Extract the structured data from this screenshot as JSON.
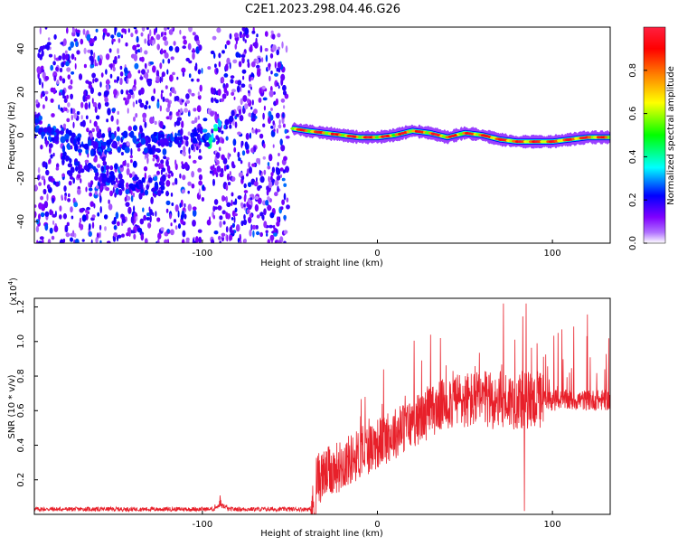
{
  "figure_title": "C2E1.2023.298.04.46.G26",
  "chart_data": [
    {
      "type": "heatmap",
      "title": "C2E1.2023.298.04.46.G26",
      "xlabel": "Height of straight line (km)",
      "ylabel": "Frequency (Hz)",
      "xlim": [
        -196,
        133
      ],
      "ylim": [
        -50,
        50
      ],
      "xticks": [
        -100,
        0,
        100
      ],
      "yticks": [
        -40,
        -20,
        0,
        20,
        40
      ],
      "colorbar": {
        "label": "Normalized spectral amplitude",
        "range": [
          0,
          1
        ],
        "ticks": [
          0.0,
          0.2,
          0.4,
          0.6,
          0.8
        ],
        "colormap": [
          "#ffffff",
          "#8000ff",
          "#0000ff",
          "#00ffff",
          "#00ff00",
          "#ffff00",
          "#ff8000",
          "#ff0000"
        ]
      },
      "noise_region_x": [
        -196,
        -51
      ],
      "signal_ridge": {
        "x": [
          -48,
          -40,
          -30,
          -20,
          -10,
          0,
          10,
          20,
          30,
          40,
          50,
          60,
          70,
          80,
          90,
          100,
          110,
          120,
          133
        ],
        "y": [
          3,
          2,
          1,
          0,
          -1,
          -1,
          0,
          2,
          1,
          -1,
          1,
          0,
          -2,
          -3,
          -3,
          -3,
          -2,
          -1,
          -1
        ]
      },
      "left_band": {
        "x": [
          -196,
          -180,
          -160,
          -140,
          -120,
          -100,
          -90
        ],
        "y": [
          6,
          -2,
          -4,
          -4,
          -3,
          -2,
          2
        ]
      },
      "lower_band": {
        "x": [
          -180,
          -160,
          -140,
          -120
        ],
        "y": [
          -12,
          -18,
          -22,
          -25
        ]
      }
    },
    {
      "type": "line",
      "xlabel": "Height of straight line (km)",
      "ylabel": "SNR (10 * v/v)",
      "y_multiplier_label": "(x10",
      "y_multiplier_exp": "4",
      "xlim": [
        -196,
        133
      ],
      "ylim": [
        0,
        1.25
      ],
      "xticks": [
        -100,
        0,
        100
      ],
      "yticks": [
        0.2,
        0.4,
        0.6,
        0.8,
        1.0,
        1.2
      ],
      "color": "#e8202a",
      "series": [
        {
          "x": [
            -196,
            -150,
            -100,
            -90,
            -88,
            -85,
            -60,
            -40,
            -38,
            -35,
            -30,
            -20,
            -10,
            0,
            10,
            20,
            25,
            30,
            35,
            40,
            45,
            50,
            55,
            60,
            65,
            70,
            72,
            75,
            80,
            84,
            85,
            86,
            90,
            95,
            100,
            110,
            120,
            133
          ],
          "y": [
            0.03,
            0.03,
            0.03,
            0.04,
            0.09,
            0.04,
            0.03,
            0.03,
            0.08,
            0.2,
            0.25,
            0.33,
            0.38,
            0.42,
            0.47,
            0.54,
            0.58,
            0.62,
            0.64,
            0.66,
            0.66,
            0.67,
            0.66,
            0.66,
            0.65,
            0.68,
            1.22,
            0.66,
            0.64,
            0.05,
            1.22,
            0.8,
            0.7,
            0.72,
            0.7,
            0.67,
            0.65,
            0.66
          ]
        }
      ],
      "peaks": [
        {
          "x": 72,
          "y": 1.22
        },
        {
          "x": 85,
          "y": 1.22
        },
        {
          "x": 84,
          "y": 0.02
        },
        {
          "x": -90,
          "y": 0.11
        },
        {
          "x": 36,
          "y": 1.02
        },
        {
          "x": -7,
          "y": 0.68
        }
      ]
    }
  ]
}
